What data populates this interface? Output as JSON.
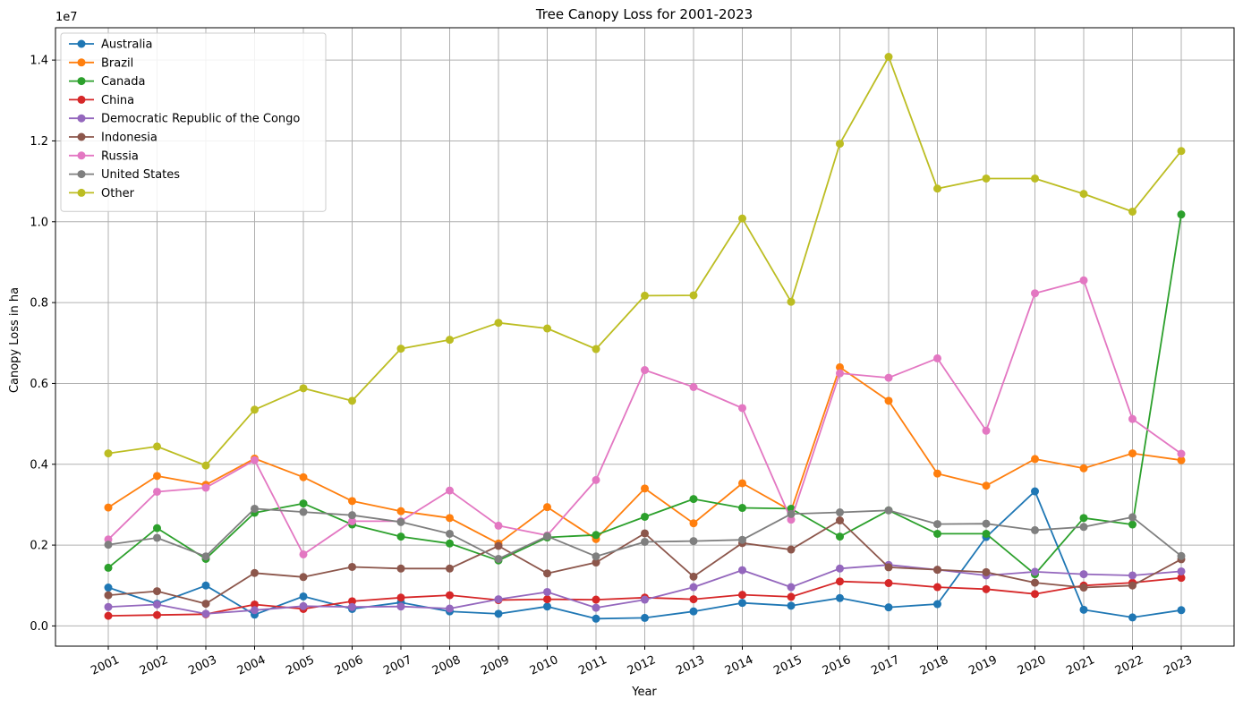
{
  "chart_data": {
    "type": "line",
    "title": "Tree Canopy Loss for 2001-2023",
    "xlabel": "Year",
    "ylabel": "Canopy Loss in ha",
    "y_offset_label": "1e7",
    "y_scale": 10000000,
    "ylim": [
      -500000,
      14800000
    ],
    "yticks": [
      0,
      2000000,
      4000000,
      6000000,
      8000000,
      10000000,
      12000000,
      14000000
    ],
    "ytick_labels": [
      "0.0",
      "0.2",
      "0.4",
      "0.6",
      "0.8",
      "1.0",
      "1.2",
      "1.4"
    ],
    "categories": [
      "2001",
      "2002",
      "2003",
      "2004",
      "2005",
      "2006",
      "2007",
      "2008",
      "2009",
      "2010",
      "2011",
      "2012",
      "2013",
      "2014",
      "2015",
      "2016",
      "2017",
      "2018",
      "2019",
      "2020",
      "2021",
      "2022",
      "2023"
    ],
    "grid": true,
    "legend_position": "top-left",
    "series": [
      {
        "name": "Australia",
        "color": "#1f77b4",
        "values": [
          950000,
          550000,
          1000000,
          280000,
          730000,
          420000,
          580000,
          360000,
          300000,
          480000,
          180000,
          200000,
          360000,
          570000,
          500000,
          690000,
          460000,
          540000,
          2200000,
          3330000,
          400000,
          210000,
          390000
        ]
      },
      {
        "name": "Brazil",
        "color": "#ff7f0e",
        "values": [
          2930000,
          3710000,
          3490000,
          4140000,
          3680000,
          3090000,
          2840000,
          2670000,
          2040000,
          2940000,
          2150000,
          3400000,
          2540000,
          3530000,
          2850000,
          6400000,
          5570000,
          3770000,
          3470000,
          4130000,
          3900000,
          4270000,
          4100000
        ]
      },
      {
        "name": "Canada",
        "color": "#2ca02c",
        "values": [
          1440000,
          2420000,
          1660000,
          2800000,
          3030000,
          2510000,
          2210000,
          2040000,
          1620000,
          2190000,
          2250000,
          2700000,
          3140000,
          2920000,
          2900000,
          2210000,
          2860000,
          2280000,
          2280000,
          1280000,
          2670000,
          2510000,
          10180000
        ]
      },
      {
        "name": "China",
        "color": "#d62728",
        "values": [
          250000,
          270000,
          290000,
          530000,
          420000,
          610000,
          700000,
          760000,
          640000,
          660000,
          650000,
          700000,
          660000,
          770000,
          720000,
          1100000,
          1060000,
          960000,
          910000,
          790000,
          1000000,
          1070000,
          1190000
        ]
      },
      {
        "name": "Democratic Republic of the Congo",
        "color": "#9467bd",
        "values": [
          470000,
          530000,
          300000,
          390000,
          490000,
          470000,
          480000,
          430000,
          660000,
          840000,
          450000,
          650000,
          960000,
          1380000,
          960000,
          1420000,
          1510000,
          1390000,
          1250000,
          1340000,
          1280000,
          1250000,
          1350000
        ]
      },
      {
        "name": "Indonesia",
        "color": "#8c564b",
        "values": [
          760000,
          860000,
          550000,
          1310000,
          1210000,
          1460000,
          1420000,
          1420000,
          1980000,
          1300000,
          1570000,
          2290000,
          1220000,
          2050000,
          1890000,
          2610000,
          1450000,
          1390000,
          1330000,
          1070000,
          950000,
          1000000,
          1650000
        ]
      },
      {
        "name": "Russia",
        "color": "#e377c2",
        "values": [
          2140000,
          3320000,
          3420000,
          4100000,
          1770000,
          2590000,
          2590000,
          3350000,
          2480000,
          2240000,
          3610000,
          6330000,
          5910000,
          5390000,
          2630000,
          6250000,
          6140000,
          6620000,
          4830000,
          8230000,
          8550000,
          5120000,
          4260000
        ]
      },
      {
        "name": "United States",
        "color": "#7f7f7f",
        "values": [
          2010000,
          2180000,
          1720000,
          2900000,
          2820000,
          2740000,
          2570000,
          2280000,
          1660000,
          2220000,
          1720000,
          2080000,
          2100000,
          2130000,
          2770000,
          2810000,
          2860000,
          2520000,
          2530000,
          2370000,
          2450000,
          2690000,
          1730000
        ]
      },
      {
        "name": "Other",
        "color": "#bcbd22",
        "values": [
          4270000,
          4440000,
          3970000,
          5350000,
          5880000,
          5570000,
          6860000,
          7080000,
          7500000,
          7360000,
          6850000,
          8170000,
          8180000,
          10080000,
          8020000,
          11930000,
          14080000,
          10820000,
          11070000,
          11070000,
          10690000,
          10250000,
          11750000
        ]
      }
    ]
  }
}
